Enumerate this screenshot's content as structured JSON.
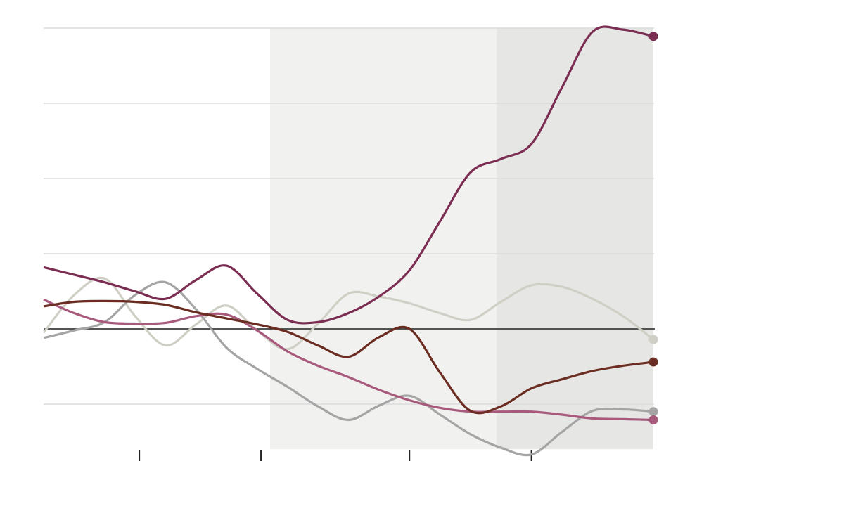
{
  "chart_data": {
    "type": "line",
    "x": [
      0,
      1,
      2,
      3,
      4,
      5,
      6,
      7,
      8,
      9,
      10,
      11,
      12,
      13,
      14,
      15,
      16,
      17,
      18,
      19,
      20
    ],
    "xlim": [
      0,
      20
    ],
    "xticks": [
      3.14,
      7.13,
      12,
      16
    ],
    "ylim": [
      -1.6,
      4
    ],
    "yticks": [
      -1,
      0,
      1,
      2,
      3,
      4
    ],
    "grid": true,
    "reference_line": 0,
    "shaded_regions": [
      {
        "from": 7.43,
        "to": 14.86,
        "color": "#f1f1f0"
      },
      {
        "from": 14.86,
        "to": 20,
        "color": "#e6e6e4"
      }
    ],
    "series": [
      {
        "color": "#d0cfc6",
        "values": [
          -0.05,
          0.45,
          0.67,
          0.17,
          -0.22,
          0.06,
          0.31,
          -0.02,
          -0.27,
          0.07,
          0.47,
          0.43,
          0.34,
          0.21,
          0.12,
          0.36,
          0.58,
          0.56,
          0.4,
          0.17,
          -0.14
        ]
      },
      {
        "color": "#a5a5a5",
        "values": [
          -0.12,
          -0.02,
          0.09,
          0.45,
          0.62,
          0.26,
          -0.25,
          -0.53,
          -0.77,
          -1.03,
          -1.21,
          -1.02,
          -0.89,
          -1.14,
          -1.4,
          -1.58,
          -1.67,
          -1.37,
          -1.09,
          -1.07,
          -1.1
        ]
      },
      {
        "color": "#a85a7c",
        "values": [
          0.39,
          0.21,
          0.09,
          0.07,
          0.08,
          0.17,
          0.19,
          -0.02,
          -0.3,
          -0.49,
          -0.64,
          -0.81,
          -0.95,
          -1.05,
          -1.1,
          -1.1,
          -1.1,
          -1.14,
          -1.19,
          -1.2,
          -1.21
        ]
      },
      {
        "color": "#6b2d22",
        "values": [
          0.3,
          0.36,
          0.37,
          0.36,
          0.32,
          0.22,
          0.14,
          0.06,
          -0.04,
          -0.22,
          -0.37,
          -0.11,
          0.0,
          -0.58,
          -1.09,
          -1.03,
          -0.79,
          -0.67,
          -0.56,
          -0.49,
          -0.44
        ]
      },
      {
        "color": "#7b2d52",
        "values": [
          0.82,
          0.72,
          0.62,
          0.5,
          0.4,
          0.65,
          0.84,
          0.47,
          0.12,
          0.09,
          0.21,
          0.43,
          0.78,
          1.43,
          2.08,
          2.26,
          2.46,
          3.21,
          3.95,
          3.98,
          3.89
        ]
      }
    ]
  }
}
